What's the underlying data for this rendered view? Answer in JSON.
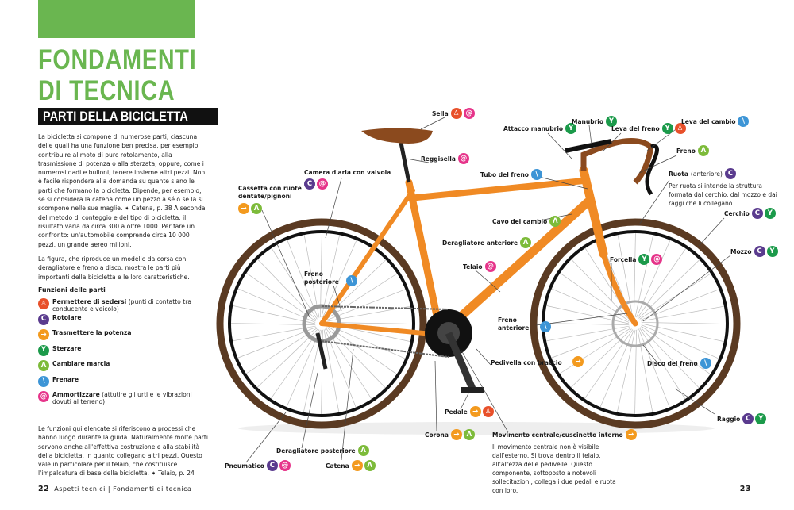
{
  "header": {
    "title_line1": "FONDAMENTI",
    "title_line2": "DI TECNICA",
    "subtitle": "PARTI DELLA BICICLETTA"
  },
  "intro": "La bicicletta si compone di numerose parti, ciascuna delle quali ha una funzione ben precisa, per esempio contribuire al moto di puro rotolamento, alla trasmissione di potenza o alla sterzata, oppure, come i numerosi dadi e bulloni, tenere insieme altri pezzi. Non è facile rispondere alla domanda su quante siano le parti che formano la bicicletta. Dipende, per esempio, se si considera la catena come un pezzo a sé o se la si scompone nelle sue maglie. ➧ Catena, p. 38 A seconda del metodo di conteggio e del tipo di bicicletta, il risultato varia da circa 300 a oltre 1000. Per fare un confronto: un'automobile comprende circa 10 000 pezzi, un grande aereo milioni.",
  "figure_text": "La figura, che riproduce un modello da corsa con deragliatore e freno a disco, mostra le parti più importanti della bicicletta e le loro caratteristiche.",
  "legend": {
    "title": "Funzioni delle parti",
    "items": [
      {
        "icon": "sit",
        "label": "Permettere di sedersi",
        "note": " (punti di contatto tra conducente e veicolo)"
      },
      {
        "icon": "roll",
        "label": "Rotolare",
        "note": ""
      },
      {
        "icon": "transmit",
        "label": "Trasmettere la potenza",
        "note": ""
      },
      {
        "icon": "steer",
        "label": "Sterzare",
        "note": ""
      },
      {
        "icon": "gear",
        "label": "Cambiare marcia",
        "note": ""
      },
      {
        "icon": "brake",
        "label": "Frenare",
        "note": ""
      },
      {
        "icon": "damp",
        "label": "Ammortizzare",
        "note": " (attutire gli urti e le vibrazioni dovuti al terreno)"
      }
    ]
  },
  "closing": "Le funzioni qui elencate si riferiscono a processi che hanno luogo durante la guida. Naturalmente molte parti servono anche all'effettiva costruzione e alla stabilità della bicicletta, in quanto collegano altri pezzi. Questo vale in particolare per il telaio, che costituisce l'impalcatura di base della bicicletta. ➧ Telaio, p. 24",
  "colors": {
    "sit": "#e8502a",
    "roll": "#5a3b8e",
    "transmit": "#f39a1e",
    "steer": "#1b9a4a",
    "gear": "#7dbb3a",
    "brake": "#3d95d6",
    "damp": "#e6348a",
    "title_green": "#6ab650",
    "frame": "#f08a24"
  },
  "icon_glyphs": {
    "sit": "♙",
    "roll": "C",
    "transmit": "→",
    "steer": "Y",
    "gear": "Λ",
    "brake": "\\",
    "damp": "@"
  },
  "labels": [
    {
      "name": "Sella",
      "icons": [
        "sit",
        "damp"
      ]
    },
    {
      "name": "Reggisella",
      "icons": [
        "damp"
      ]
    },
    {
      "name": "Camera d'aria con valvola",
      "icons": [
        "roll",
        "damp"
      ]
    },
    {
      "name": "Cassetta con ruote dentate/pignoni",
      "icons": [
        "transmit",
        "gear"
      ]
    },
    {
      "name": "Attacco manubrio",
      "icons": [
        "steer"
      ]
    },
    {
      "name": "Manubrio",
      "icons": [
        "steer"
      ]
    },
    {
      "name": "Leva del freno",
      "icons": [
        "steer",
        "sit"
      ]
    },
    {
      "name": "Leva del cambio",
      "icons": [
        "brake"
      ]
    },
    {
      "name": "Freno",
      "icons": [
        "gear"
      ]
    },
    {
      "name": "Tubo del freno",
      "icons": [
        "brake"
      ]
    },
    {
      "name": "Ruota",
      "note": " (anteriore)",
      "desc": "Per ruota si intende la struttura formata dal cerchio, dal mozzo e dai raggi che li collegano",
      "icons": [
        "roll"
      ]
    },
    {
      "name": "Cerchio",
      "icons": [
        "roll",
        "steer"
      ]
    },
    {
      "name": "Mozzo",
      "icons": [
        "roll",
        "steer"
      ]
    },
    {
      "name": "Cavo del cambio",
      "icons": [
        "gear"
      ]
    },
    {
      "name": "Deragliatore anteriore",
      "icons": [
        "gear"
      ]
    },
    {
      "name": "Telaio",
      "icons": [
        "damp"
      ]
    },
    {
      "name": "Forcella",
      "icons": [
        "steer",
        "damp"
      ]
    },
    {
      "name": "Freno posteriore",
      "icons": [
        "brake"
      ]
    },
    {
      "name": "Freno anteriore",
      "icons": [
        "brake"
      ]
    },
    {
      "name": "Pedivella con braccio",
      "icons": [
        "transmit"
      ]
    },
    {
      "name": "Disco del freno",
      "icons": [
        "brake"
      ]
    },
    {
      "name": "Pedale",
      "icons": [
        "transmit",
        "sit"
      ]
    },
    {
      "name": "Raggio",
      "icons": [
        "roll",
        "steer"
      ]
    },
    {
      "name": "Corona",
      "icons": [
        "transmit",
        "gear"
      ]
    },
    {
      "name": "Movimento centrale/cuscinetto interno",
      "desc": "Il movimento centrale non è visibile dall'esterno. Si trova dentro il telaio, all'altezza delle pedivelle. Questo componente, sottoposto a notevoli sollecitazioni, collega i due pedali e ruota con loro.",
      "icons": [
        "transmit"
      ]
    },
    {
      "name": "Deragliatore posteriore",
      "icons": [
        "gear"
      ]
    },
    {
      "name": "Pneumatico",
      "icons": [
        "roll",
        "damp"
      ]
    },
    {
      "name": "Catena",
      "icons": [
        "transmit",
        "gear"
      ]
    }
  ],
  "footer": {
    "left_page": "22",
    "left_text": "Aspetti tecnici | Fondamenti di tecnica",
    "right_page": "23"
  }
}
